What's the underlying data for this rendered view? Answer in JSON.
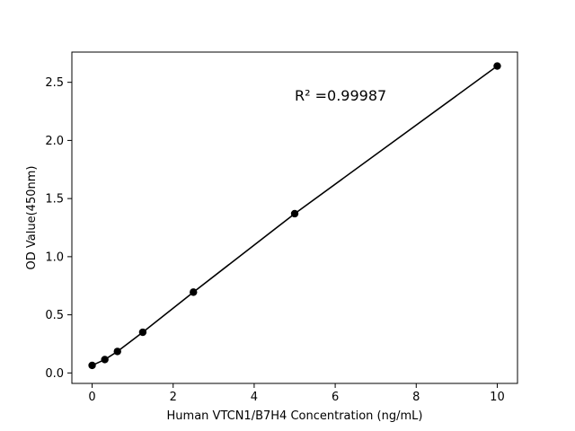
{
  "chart_data": {
    "type": "scatter",
    "xlabel": "Human VTCN1/B7H4 Concentration (ng/mL)",
    "ylabel": "OD Value(450nm)",
    "xlim": [
      -0.5,
      10.5
    ],
    "ylim": [
      -0.09,
      2.76
    ],
    "xticks": [
      0,
      2,
      4,
      6,
      8,
      10
    ],
    "xtick_labels": [
      "0",
      "2",
      "4",
      "6",
      "8",
      "10"
    ],
    "yticks": [
      0.0,
      0.5,
      1.0,
      1.5,
      2.0,
      2.5
    ],
    "ytick_labels": [
      "0.0",
      "0.5",
      "1.0",
      "1.5",
      "2.0",
      "2.5"
    ],
    "grid": false,
    "series": [
      {
        "x": [
          0,
          0.313,
          0.625,
          1.25,
          2.5,
          5,
          10
        ],
        "y": [
          0.065,
          0.115,
          0.185,
          0.35,
          0.695,
          1.37,
          2.64
        ],
        "marker": "circle",
        "line": true,
        "color": "#000000"
      }
    ],
    "annotations": [
      {
        "text": "R² =0.99987",
        "x": 5.0,
        "y": 2.39
      }
    ]
  }
}
